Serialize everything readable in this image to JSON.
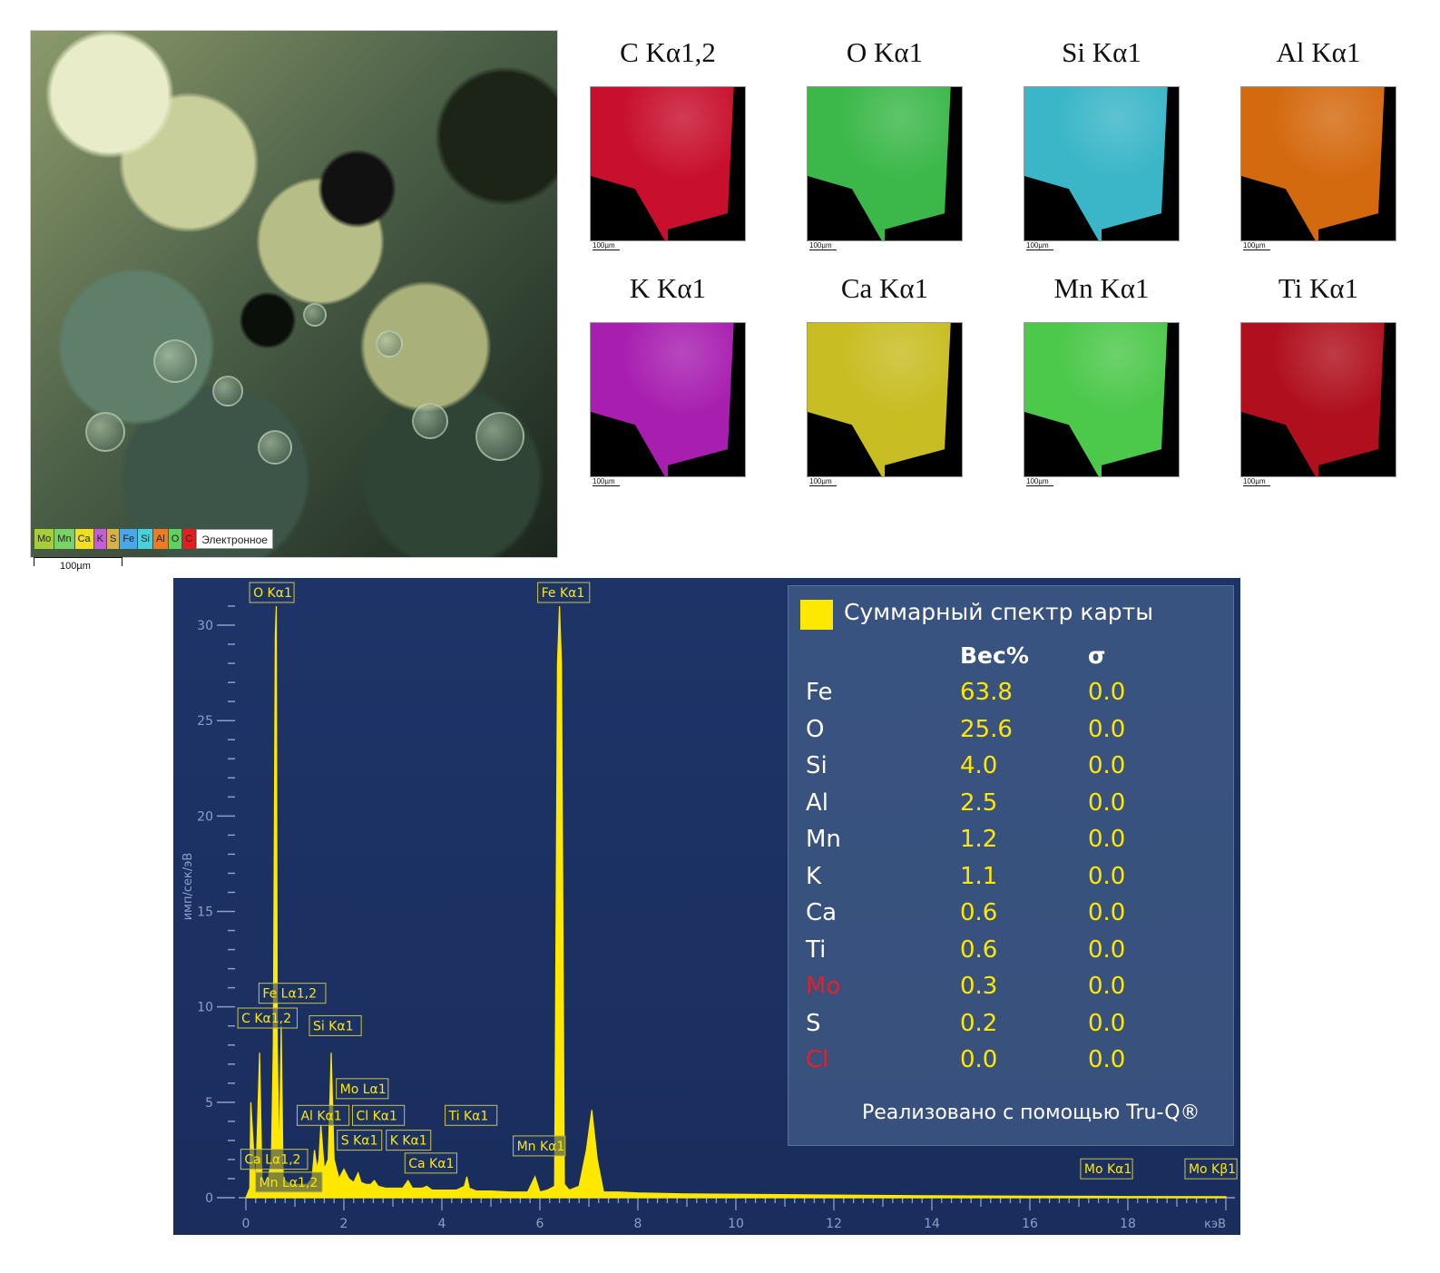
{
  "sem_image": {
    "legend": [
      "Mo",
      "Mn",
      "Ca",
      "K",
      "S",
      "Fe",
      "Si",
      "Al",
      "O",
      "C"
    ],
    "legend_colors": [
      "#a8cd3a",
      "#7bd06a",
      "#f0e020",
      "#c060d8",
      "#d8b04a",
      "#4aa8e8",
      "#4ad0d8",
      "#f07a20",
      "#60d060",
      "#e02020"
    ],
    "electron_label": "Электронное",
    "scale_label": "100µm"
  },
  "element_maps": [
    {
      "title": "C Kα1,2",
      "color": "#c8102e",
      "scale": "100µm"
    },
    {
      "title": "O Kα1",
      "color": "#3cb84a",
      "scale": "100µm"
    },
    {
      "title": "Si Kα1",
      "color": "#3ab6c8",
      "scale": "100µm"
    },
    {
      "title": "Al Kα1",
      "color": "#d46a10",
      "scale": "100µm"
    },
    {
      "title": "K Kα1",
      "color": "#a81fb0",
      "scale": "100µm"
    },
    {
      "title": "Ca Kα1",
      "color": "#c8bd22",
      "scale": "100µm"
    },
    {
      "title": "Mn Kα1",
      "color": "#4cc84a",
      "scale": "100µm"
    },
    {
      "title": "Ti Kα1",
      "color": "#b0101e",
      "scale": "100µm"
    }
  ],
  "chart_data": {
    "type": "line",
    "title": "",
    "xlabel": "кэВ",
    "ylabel": "имп/сек/эВ",
    "xlim": [
      0,
      20
    ],
    "ylim": [
      0,
      31
    ],
    "xticks": [
      0,
      2,
      4,
      6,
      8,
      10,
      12,
      14,
      16,
      18
    ],
    "yticks": [
      0,
      5,
      10,
      15,
      20,
      25,
      30
    ],
    "series": [
      {
        "color": "#ffe800",
        "x": [
          0,
          0.08,
          0.1,
          0.2,
          0.28,
          0.33,
          0.38,
          0.45,
          0.52,
          0.56,
          0.6,
          0.62,
          0.64,
          0.68,
          0.72,
          0.76,
          0.8,
          0.85,
          0.95,
          1.1,
          1.25,
          1.35,
          1.4,
          1.45,
          1.49,
          1.53,
          1.6,
          1.68,
          1.74,
          1.8,
          1.9,
          2.0,
          2.1,
          2.2,
          2.29,
          2.35,
          2.45,
          2.55,
          2.62,
          2.7,
          2.85,
          3.0,
          3.2,
          3.31,
          3.4,
          3.6,
          3.69,
          3.8,
          4.0,
          4.3,
          4.46,
          4.51,
          4.56,
          4.7,
          5.0,
          5.4,
          5.75,
          5.9,
          6.0,
          6.15,
          6.3,
          6.36,
          6.4,
          6.44,
          6.5,
          6.6,
          6.8,
          6.95,
          7.06,
          7.17,
          7.3,
          7.6,
          8.0,
          9.0,
          10.0,
          12.0,
          14.0,
          16.0,
          17.48,
          18.0,
          19.61,
          20.0
        ],
        "y": [
          0,
          0.5,
          5.0,
          0.6,
          7.6,
          0.8,
          0.7,
          0.9,
          2.0,
          8.0,
          29.5,
          31.0,
          8.0,
          1.5,
          9.0,
          1.2,
          0.9,
          0.8,
          0.7,
          0.7,
          0.7,
          1.0,
          2.5,
          1.5,
          2.0,
          3.8,
          1.5,
          2.0,
          7.6,
          2.0,
          1.0,
          1.5,
          1.0,
          0.8,
          1.3,
          0.8,
          0.7,
          0.7,
          0.9,
          0.6,
          0.5,
          0.5,
          0.5,
          0.9,
          0.5,
          0.5,
          0.6,
          0.4,
          0.4,
          0.4,
          0.6,
          1.1,
          0.5,
          0.35,
          0.35,
          0.3,
          0.3,
          1.1,
          0.3,
          0.4,
          0.6,
          28.0,
          31.0,
          28.0,
          0.7,
          0.4,
          0.6,
          2.5,
          4.6,
          2.0,
          0.3,
          0.3,
          0.25,
          0.2,
          0.18,
          0.14,
          0.1,
          0.08,
          0.07,
          0.06,
          0.05,
          0.05
        ]
      }
    ],
    "peak_labels": [
      {
        "label": "O Kα1",
        "x": 0.52,
        "y": 31
      },
      {
        "label": "Fe Kα1",
        "x": 6.4,
        "y": 31
      },
      {
        "label": "Fe Lα1,2",
        "x": 0.71,
        "y": 10
      },
      {
        "label": "C Kα1,2",
        "x": 0.28,
        "y": 8.7
      },
      {
        "label": "Si Kα1",
        "x": 1.74,
        "y": 8.3
      },
      {
        "label": "Mo Lα1",
        "x": 2.29,
        "y": 5.0
      },
      {
        "label": "Al Kα1",
        "x": 1.49,
        "y": 3.6
      },
      {
        "label": "Cl Kα1",
        "x": 2.62,
        "y": 3.6
      },
      {
        "label": "Ti Kα1",
        "x": 4.51,
        "y": 3.6
      },
      {
        "label": "S Kα1",
        "x": 2.31,
        "y": 2.3
      },
      {
        "label": "K Kα1",
        "x": 3.31,
        "y": 2.3
      },
      {
        "label": "Mn Kα1",
        "x": 5.9,
        "y": 2.0
      },
      {
        "label": "Ca Lα1,2",
        "x": 0.34,
        "y": 1.3
      },
      {
        "label": "Ca Kα1",
        "x": 3.69,
        "y": 1.1
      },
      {
        "label": "Mn Lα1,2",
        "x": 0.64,
        "y": 0.1
      },
      {
        "label": "Mo Kα1",
        "x": 17.48,
        "y": 0.8
      },
      {
        "label": "Mo Kβ1",
        "x": 19.61,
        "y": 0.8
      }
    ]
  },
  "composition_table": {
    "title": "Суммарный спектр карты",
    "swatch_color": "#ffe800",
    "col_weight": "Вес%",
    "col_sigma": "σ",
    "rows": [
      {
        "el": "Fe",
        "wt": "63.8",
        "sigma": "0.0",
        "red": false
      },
      {
        "el": "O",
        "wt": "25.6",
        "sigma": "0.0",
        "red": false
      },
      {
        "el": "Si",
        "wt": "4.0",
        "sigma": "0.0",
        "red": false
      },
      {
        "el": "Al",
        "wt": "2.5",
        "sigma": "0.0",
        "red": false
      },
      {
        "el": "Mn",
        "wt": "1.2",
        "sigma": "0.0",
        "red": false
      },
      {
        "el": "K",
        "wt": "1.1",
        "sigma": "0.0",
        "red": false
      },
      {
        "el": "Ca",
        "wt": "0.6",
        "sigma": "0.0",
        "red": false
      },
      {
        "el": "Ti",
        "wt": "0.6",
        "sigma": "0.0",
        "red": false
      },
      {
        "el": "Mo",
        "wt": "0.3",
        "sigma": "0.0",
        "red": true
      },
      {
        "el": "S",
        "wt": "0.2",
        "sigma": "0.0",
        "red": false
      },
      {
        "el": "Cl",
        "wt": "0.0",
        "sigma": "0.0",
        "red": true
      }
    ],
    "footer": "Реализовано с помощью Tru-Q®"
  }
}
